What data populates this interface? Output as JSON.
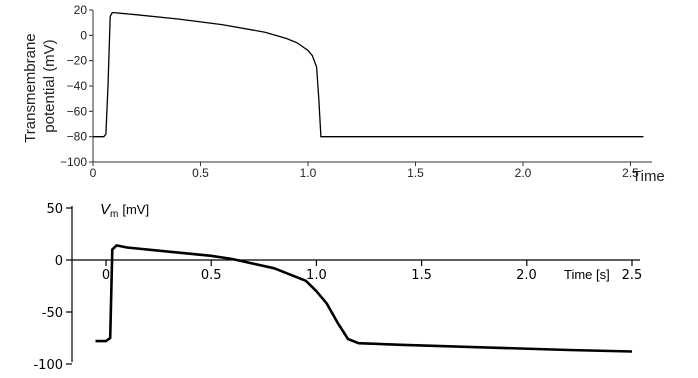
{
  "chart_data": [
    {
      "type": "line",
      "title": "",
      "xlabel": "Time",
      "ylabel": "Transmembrane potential (mV)",
      "xlim": [
        0,
        2.6
      ],
      "ylim": [
        -100,
        20
      ],
      "x_ticks": [
        "0",
        "0.5",
        "1.0",
        "1.5",
        "2.0",
        "2.5"
      ],
      "y_ticks": [
        "20",
        "0",
        "−20",
        "−40",
        "−60",
        "−80",
        "−100"
      ],
      "series": [
        {
          "x": [
            0.0,
            0.05,
            0.06,
            0.07,
            0.08,
            0.09,
            0.2,
            0.4,
            0.6,
            0.8,
            0.9,
            0.95,
            1.0,
            1.02,
            1.04,
            1.05,
            1.06,
            1.07,
            1.1,
            1.5,
            2.0,
            2.56
          ],
          "y": [
            -80,
            -80,
            -78,
            -40,
            15,
            18,
            16.3,
            12.8,
            8.5,
            2.5,
            -2.5,
            -6,
            -12,
            -16,
            -25,
            -50,
            -80,
            -80,
            -80,
            -80,
            -80,
            -80
          ]
        }
      ]
    },
    {
      "type": "line",
      "title": "",
      "xlabel": "Time [s]",
      "ylabel": "V_m [mV]",
      "ylabel_main": "V",
      "ylabel_sub": "m",
      "ylabel_unit": "[mV]",
      "xlim": [
        -0.05,
        2.5
      ],
      "ylim": [
        -100,
        50
      ],
      "x_ticks": [
        "0",
        "0.5",
        "1.0",
        "1.5",
        "2.0",
        "2.5"
      ],
      "y_ticks": [
        "50",
        "0",
        "-50",
        "-100"
      ],
      "series": [
        {
          "x": [
            -0.05,
            0.0,
            0.02,
            0.03,
            0.05,
            0.1,
            0.3,
            0.5,
            0.6,
            0.8,
            0.95,
            1.0,
            1.05,
            1.1,
            1.15,
            1.2,
            1.4,
            1.8,
            2.2,
            2.5
          ],
          "y": [
            -78,
            -78,
            -75,
            10,
            14,
            12,
            8,
            4,
            1,
            -8,
            -20,
            -30,
            -42,
            -60,
            -76,
            -80,
            -81.5,
            -84,
            -86.5,
            -88
          ]
        }
      ]
    }
  ]
}
